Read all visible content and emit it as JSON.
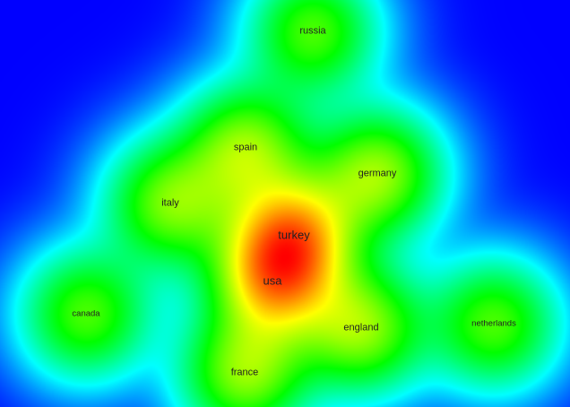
{
  "density_map": {
    "color_scale": [
      "#0000ff",
      "#00ffff",
      "#00ff00",
      "#ffff00",
      "#ff0000"
    ],
    "terms": [
      {
        "key": "russia",
        "label": "russia",
        "weight": 0.6
      },
      {
        "key": "spain",
        "label": "spain",
        "weight": 0.72
      },
      {
        "key": "germany",
        "label": "germany",
        "weight": 0.75
      },
      {
        "key": "italy",
        "label": "italy",
        "weight": 0.68
      },
      {
        "key": "turkey",
        "label": "turkey",
        "weight": 1.0
      },
      {
        "key": "usa",
        "label": "usa",
        "weight": 0.95
      },
      {
        "key": "canada",
        "label": "canada",
        "weight": 0.6
      },
      {
        "key": "netherlands",
        "label": "netherlands",
        "weight": 0.6
      },
      {
        "key": "england",
        "label": "england",
        "weight": 0.74
      },
      {
        "key": "france",
        "label": "france",
        "weight": 0.72
      }
    ]
  }
}
